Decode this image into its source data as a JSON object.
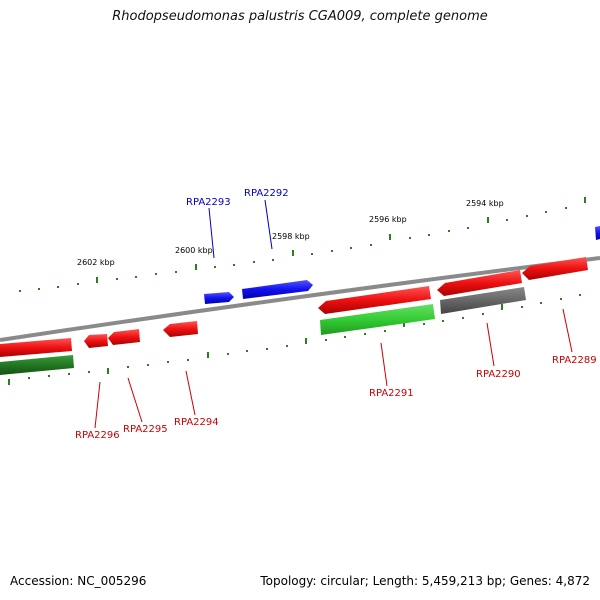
{
  "title": "Rhodopseudomonas palustris CGA009, complete genome",
  "footer": {
    "accession": "Accession: NC_005296",
    "summary": "Topology: circular; Length: 5,459,213 bp; Genes: 4,872"
  },
  "colors": {
    "backbone": "#8a8a8a",
    "tick": "#2e7d1e",
    "gene_red": "#ee1111",
    "gene_blue": "#1111ee",
    "gene_green": "#33cc33",
    "gene_darkgreen": "#227722",
    "gene_gray": "#666666",
    "label_red": "#cc0000",
    "label_blue": "#0000cc"
  },
  "scale_labels": [
    "2602 kbp",
    "2600 kbp",
    "2598 kbp",
    "2596 kbp",
    "2594 kbp"
  ],
  "gene_labels": [
    {
      "text": "RPA2293",
      "color": "blue"
    },
    {
      "text": "RPA2292",
      "color": "blue"
    },
    {
      "text": "RPA2296",
      "color": "red"
    },
    {
      "text": "RPA2295",
      "color": "red"
    },
    {
      "text": "RPA2294",
      "color": "red"
    },
    {
      "text": "RPA2291",
      "color": "red"
    },
    {
      "text": "RPA2290",
      "color": "red"
    },
    {
      "text": "RPA2289",
      "color": "red"
    }
  ]
}
